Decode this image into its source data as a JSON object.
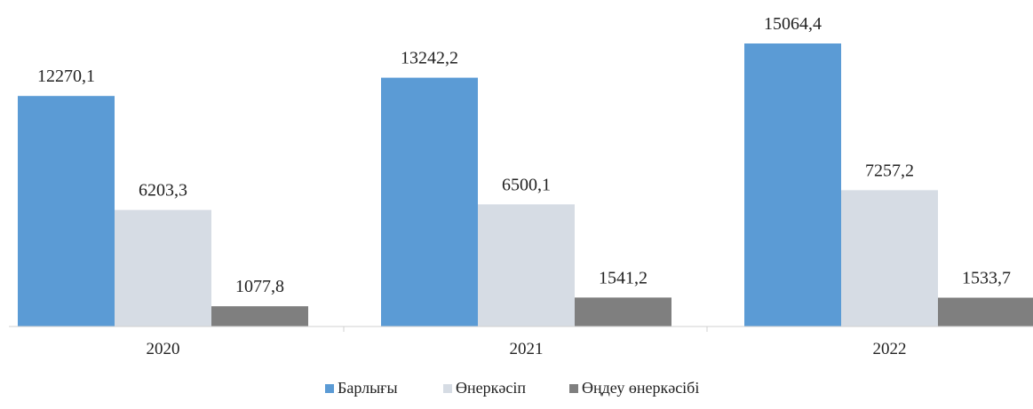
{
  "chart_data": {
    "type": "bar",
    "categories": [
      "2020",
      "2021",
      "2022"
    ],
    "series": [
      {
        "name": "Барлығы",
        "values": [
          12270.1,
          13242.2,
          15064.4
        ],
        "labels": [
          "12270,1",
          "13242,2",
          "15064,4"
        ],
        "color": "#5b9bd5"
      },
      {
        "name": "Өнеркәсіп",
        "values": [
          6203.3,
          6500.1,
          7257.2
        ],
        "labels": [
          "6203,3",
          "6500,1",
          "7257,2"
        ],
        "color": "#d6dce4"
      },
      {
        "name": "Өңдеу өнеркәсібі",
        "values": [
          1077.8,
          1541.2,
          1533.7
        ],
        "labels": [
          "1077,8",
          "1541,2",
          "1533,7"
        ],
        "color": "#7f7f7f"
      }
    ],
    "title": "",
    "xlabel": "",
    "ylabel": "",
    "ylim": [
      0,
      15064.4
    ],
    "grid": false,
    "legend_position": "bottom"
  }
}
